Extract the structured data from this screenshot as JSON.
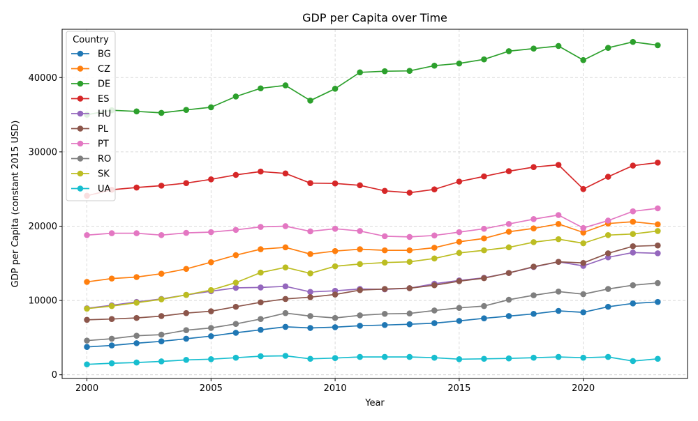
{
  "chart_data": {
    "type": "line",
    "title": "GDP per Capita over Time",
    "xlabel": "Year",
    "ylabel": "GDP per Capita (constant 2015 USD)",
    "xlim": [
      1999,
      2024.2
    ],
    "ylim": [
      -500,
      46500
    ],
    "x_ticks": [
      2000,
      2005,
      2010,
      2015,
      2020
    ],
    "y_ticks": [
      0,
      10000,
      20000,
      30000,
      40000
    ],
    "grid": true,
    "legend": {
      "title": "Country",
      "placement": "top-left"
    },
    "x": [
      2000,
      2001,
      2002,
      2003,
      2004,
      2005,
      2006,
      2007,
      2008,
      2009,
      2010,
      2011,
      2012,
      2013,
      2014,
      2015,
      2016,
      2017,
      2018,
      2019,
      2020,
      2021,
      2022,
      2023
    ],
    "series": [
      {
        "name": "BG",
        "color": "#1f77b4",
        "values": [
          3750,
          3950,
          4250,
          4500,
          4850,
          5200,
          5650,
          6050,
          6450,
          6300,
          6400,
          6600,
          6700,
          6800,
          6950,
          7250,
          7600,
          7900,
          8200,
          8600,
          8400,
          9150,
          9600,
          9800
        ]
      },
      {
        "name": "CZ",
        "color": "#ff7f0e",
        "values": [
          12500,
          12950,
          13150,
          13600,
          14250,
          15150,
          16100,
          16900,
          17150,
          16250,
          16650,
          16900,
          16750,
          16750,
          17100,
          17900,
          18350,
          19250,
          19700,
          20300,
          19150,
          20350,
          20600,
          20250
        ]
      },
      {
        "name": "DE",
        "color": "#2ca02c",
        "values": [
          35000,
          35600,
          35450,
          35250,
          35650,
          36000,
          37450,
          38550,
          38950,
          36900,
          38500,
          40700,
          40850,
          40900,
          41600,
          41900,
          42450,
          43550,
          43900,
          44250,
          42350,
          44000,
          44800,
          44350
        ]
      },
      {
        "name": "ES",
        "color": "#d62728",
        "values": [
          24100,
          24900,
          25200,
          25450,
          25800,
          26300,
          26900,
          27350,
          27100,
          25800,
          25750,
          25500,
          24750,
          24500,
          24950,
          26000,
          26700,
          27400,
          27950,
          28250,
          25000,
          26650,
          28150,
          28550
        ]
      },
      {
        "name": "HU",
        "color": "#9467bd",
        "values": [
          8950,
          9350,
          9800,
          10200,
          10750,
          11250,
          11700,
          11750,
          11900,
          11150,
          11300,
          11550,
          11500,
          11650,
          12250,
          12700,
          13050,
          13700,
          14500,
          15200,
          14650,
          15800,
          16450,
          16350
        ]
      },
      {
        "name": "PL",
        "color": "#8c564b",
        "values": [
          7400,
          7500,
          7650,
          7900,
          8300,
          8550,
          9150,
          9750,
          10200,
          10450,
          10800,
          11400,
          11550,
          11650,
          12050,
          12600,
          13000,
          13700,
          14550,
          15200,
          15050,
          16350,
          17300,
          17400
        ]
      },
      {
        "name": "PT",
        "color": "#e377c2",
        "values": [
          18800,
          19050,
          19050,
          18800,
          19100,
          19200,
          19500,
          19900,
          20000,
          19300,
          19650,
          19350,
          18650,
          18550,
          18750,
          19200,
          19650,
          20300,
          20950,
          21500,
          19750,
          20750,
          22000,
          22400
        ]
      },
      {
        "name": "RO",
        "color": "#7f7f7f",
        "values": [
          4600,
          4850,
          5250,
          5400,
          6000,
          6300,
          6850,
          7500,
          8300,
          7900,
          7650,
          8000,
          8200,
          8250,
          8650,
          9000,
          9250,
          10100,
          10700,
          11200,
          10850,
          11550,
          12050,
          12350
        ]
      },
      {
        "name": "SK",
        "color": "#bcbd22",
        "values": [
          8900,
          9250,
          9700,
          10150,
          10750,
          11400,
          12400,
          13750,
          14450,
          13650,
          14600,
          14900,
          15100,
          15200,
          15650,
          16400,
          16750,
          17150,
          17850,
          18250,
          17700,
          18800,
          18950,
          19350
        ]
      },
      {
        "name": "UA",
        "color": "#17becf",
        "values": [
          1400,
          1550,
          1650,
          1800,
          2000,
          2100,
          2300,
          2500,
          2550,
          2150,
          2250,
          2400,
          2400,
          2400,
          2300,
          2100,
          2150,
          2200,
          2300,
          2400,
          2300,
          2400,
          1850,
          2150
        ]
      }
    ]
  }
}
